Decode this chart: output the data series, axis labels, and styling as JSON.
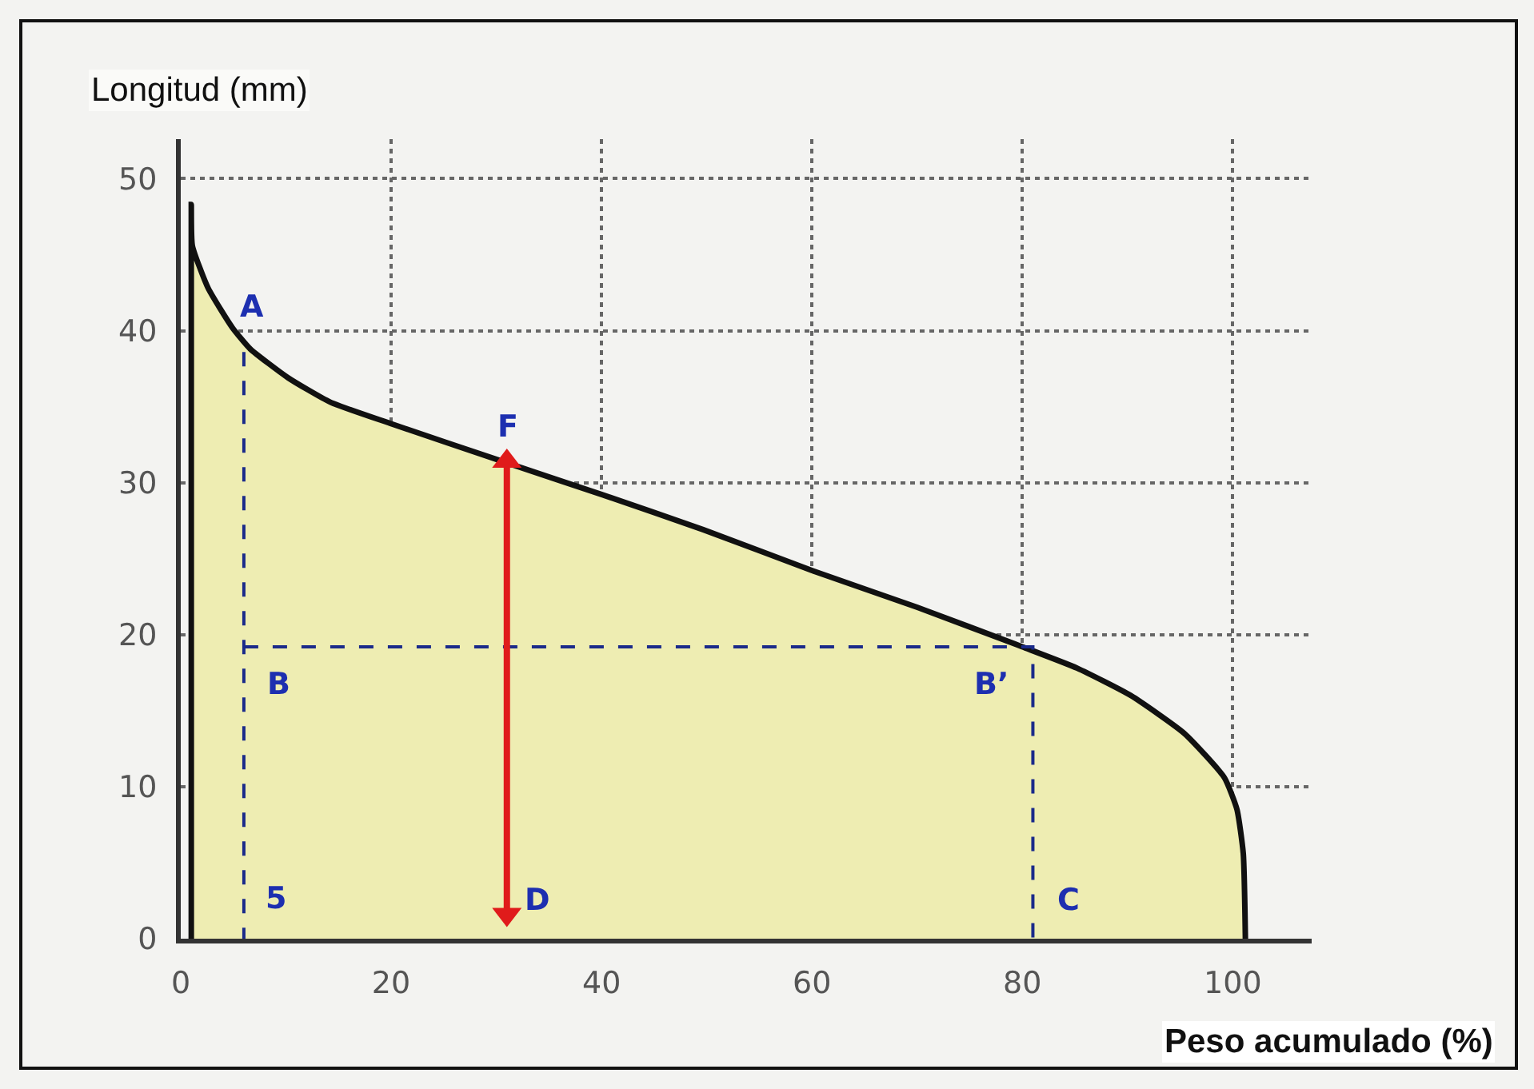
{
  "chart_data": {
    "type": "area",
    "xlabel": "Peso acumulado (%)",
    "ylabel": "Longitud (mm)",
    "xlim": [
      0,
      107.5
    ],
    "xticks": [
      0,
      20,
      40,
      60,
      80,
      100
    ],
    "ylim": [
      0,
      52.6
    ],
    "yticks": [
      0,
      10,
      20,
      30,
      40,
      50
    ],
    "grid": true,
    "series": [
      {
        "color": "#eeedb2",
        "x": [
          1,
          1,
          1.1,
          2.6,
          4.9,
          6.6,
          10.2,
          14.2,
          19.9,
          31,
          40.1,
          49.7,
          60.1,
          70,
          80,
          85.2,
          90.3,
          95.4,
          99.2,
          100.4,
          101,
          101.2
        ],
        "values": [
          0,
          48.3,
          45.6,
          42.8,
          40.2,
          38.8,
          36.9,
          35.3,
          33.9,
          31.3,
          29.2,
          26.9,
          24.2,
          21.8,
          19.2,
          17.8,
          16,
          13.5,
          10.6,
          8.5,
          5.6,
          0
        ]
      },
      {
        "type": "line",
        "color": "#1a2a8a",
        "line_style": "dashed",
        "x": [
          6,
          6
        ],
        "values": [
          38.6,
          0
        ]
      },
      {
        "type": "line",
        "color": "#1a2a8a",
        "line_style": "dashed",
        "x": [
          6,
          81,
          81
        ],
        "values": [
          19.2,
          19.2,
          0
        ]
      },
      {
        "type": "line",
        "color": "#e01b1b",
        "marker": "triangle",
        "x": [
          31,
          31
        ],
        "values": [
          1.6,
          31.4
        ]
      }
    ],
    "annotations": [
      {
        "text": "A",
        "x": 6,
        "y": 38.6
      },
      {
        "text": "F",
        "x": 31,
        "y": 31.4
      },
      {
        "text": "B",
        "x": 6,
        "y": 19.2
      },
      {
        "text": "B’",
        "x": 81,
        "y": 19.2
      },
      {
        "text": "5",
        "x": 6,
        "y": 0
      },
      {
        "text": "D",
        "x": 31,
        "y": 1.6
      },
      {
        "text": "C",
        "x": 81,
        "y": 0
      }
    ]
  }
}
